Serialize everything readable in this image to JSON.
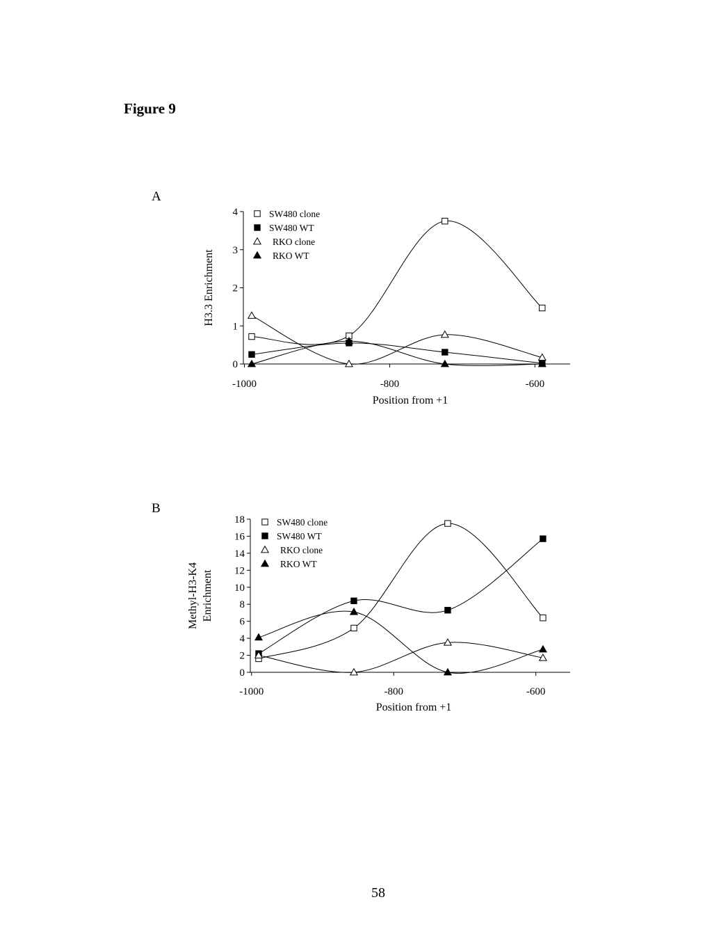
{
  "figure_title": "Figure 9",
  "page_number": "58",
  "chart_data": [
    {
      "panel": "A",
      "type": "line",
      "xlabel": "Position from +1",
      "ylabel": "H3.3 Enrichment",
      "xlim": [
        -1000,
        -550
      ],
      "ylim": [
        0,
        4
      ],
      "x_ticks": [
        "-1000",
        "-800",
        "-600"
      ],
      "y_ticks": [
        "0",
        "1",
        "2",
        "3",
        "4"
      ],
      "legend_position": "top-left",
      "series": [
        {
          "name": "SW480 clone",
          "marker": "square-open",
          "x": [
            -990,
            -856,
            -724,
            -590
          ],
          "values": [
            0.72,
            0.74,
            3.75,
            1.47
          ]
        },
        {
          "name": "SW480 WT",
          "marker": "square-filled",
          "x": [
            -990,
            -856,
            -724,
            -590
          ],
          "values": [
            0.25,
            0.55,
            0.31,
            0.02
          ]
        },
        {
          "name": "RKO clone",
          "marker": "triangle-open",
          "x": [
            -990,
            -856,
            -724,
            -590
          ],
          "values": [
            1.27,
            0.0,
            0.77,
            0.17
          ]
        },
        {
          "name": "RKO WT",
          "marker": "triangle-filled",
          "x": [
            -990,
            -856,
            -724,
            -590
          ],
          "values": [
            0.0,
            0.6,
            0.0,
            0.0
          ]
        }
      ]
    },
    {
      "panel": "B",
      "type": "line",
      "xlabel": "Position from +1",
      "ylabel": [
        "Methyl-H3-K4",
        "Enrichment"
      ],
      "xlim": [
        -1000,
        -550
      ],
      "ylim": [
        0,
        18
      ],
      "x_ticks": [
        "-1000",
        "-800",
        "-600"
      ],
      "y_ticks": [
        "0",
        "2",
        "4",
        "6",
        "8",
        "10",
        "12",
        "14",
        "16",
        "18"
      ],
      "legend_position": "top-left",
      "series": [
        {
          "name": "SW480 clone",
          "marker": "square-open",
          "x": [
            -990,
            -856,
            -724,
            -590
          ],
          "values": [
            1.6,
            5.2,
            17.5,
            6.4
          ]
        },
        {
          "name": "SW480 WT",
          "marker": "square-filled",
          "x": [
            -990,
            -856,
            -724,
            -590
          ],
          "values": [
            2.2,
            8.4,
            7.3,
            15.7
          ]
        },
        {
          "name": "RKO clone",
          "marker": "triangle-open",
          "x": [
            -990,
            -856,
            -724,
            -590
          ],
          "values": [
            2.0,
            0.0,
            3.5,
            1.7
          ]
        },
        {
          "name": "RKO WT",
          "marker": "triangle-filled",
          "x": [
            -990,
            -856,
            -724,
            -590
          ],
          "values": [
            4.1,
            7.1,
            0.0,
            2.7
          ]
        }
      ]
    }
  ]
}
